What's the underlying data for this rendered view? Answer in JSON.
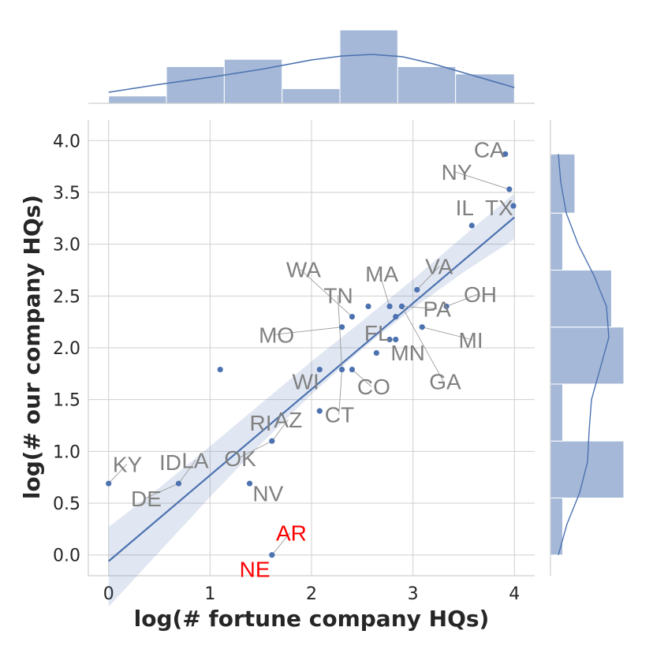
{
  "chart_data": {
    "type": "scatter",
    "xlabel": "log(# fortune company HQs)",
    "ylabel": "log(# our company HQs)",
    "xlim": [
      -0.2,
      4.2
    ],
    "ylim": [
      -0.2,
      4.2
    ],
    "x_ticks": [
      0,
      1,
      2,
      3,
      4
    ],
    "x_tick_labels": [
      "0",
      "1",
      "2",
      "3",
      "4"
    ],
    "y_ticks": [
      0.0,
      0.5,
      1.0,
      1.5,
      2.0,
      2.5,
      3.0,
      3.5,
      4.0
    ],
    "y_tick_labels": [
      "0.0",
      "0.5",
      "1.0",
      "1.5",
      "2.0",
      "2.5",
      "3.0",
      "3.5",
      "4.0"
    ],
    "grid": true,
    "marker_color": "#4c72b0",
    "label_color": "#808080",
    "highlight_color": "#ff0000",
    "points": [
      {
        "x": 0.0,
        "y": 0.69
      },
      {
        "x": 0.69,
        "y": 0.69
      },
      {
        "x": 1.1,
        "y": 1.79
      },
      {
        "x": 1.39,
        "y": 0.69
      },
      {
        "x": 1.61,
        "y": 1.1
      },
      {
        "x": 1.61,
        "y": 0.0
      },
      {
        "x": 2.08,
        "y": 1.79
      },
      {
        "x": 2.08,
        "y": 1.39
      },
      {
        "x": 2.3,
        "y": 2.2
      },
      {
        "x": 2.3,
        "y": 1.79
      },
      {
        "x": 2.4,
        "y": 2.3
      },
      {
        "x": 2.4,
        "y": 1.79
      },
      {
        "x": 2.56,
        "y": 2.4
      },
      {
        "x": 2.64,
        "y": 1.95
      },
      {
        "x": 2.77,
        "y": 2.4
      },
      {
        "x": 2.77,
        "y": 2.08
      },
      {
        "x": 2.83,
        "y": 2.3
      },
      {
        "x": 2.83,
        "y": 2.08
      },
      {
        "x": 2.89,
        "y": 2.4
      },
      {
        "x": 3.04,
        "y": 2.56
      },
      {
        "x": 3.09,
        "y": 2.2
      },
      {
        "x": 3.33,
        "y": 2.4
      },
      {
        "x": 3.58,
        "y": 3.18
      },
      {
        "x": 3.91,
        "y": 3.87
      },
      {
        "x": 3.95,
        "y": 3.53
      },
      {
        "x": 3.99,
        "y": 3.37
      }
    ],
    "annotations": [
      {
        "text": "KY",
        "x": 0.0,
        "y": 0.69,
        "tx": 0.04,
        "ty": 0.8,
        "highlight": false
      },
      {
        "text": "ID",
        "x": 0.69,
        "y": 0.69,
        "tx": 0.5,
        "ty": 0.82,
        "highlight": false
      },
      {
        "text": "LA",
        "x": 0.69,
        "y": 0.69,
        "tx": 0.72,
        "ty": 0.84,
        "highlight": false
      },
      {
        "text": "DE",
        "x": 0.69,
        "y": 0.69,
        "tx": 0.22,
        "ty": 0.47,
        "highlight": false
      },
      {
        "text": "OK",
        "x": 1.61,
        "y": 1.1,
        "tx": 1.14,
        "ty": 0.86,
        "highlight": false
      },
      {
        "text": "NV",
        "x": 1.39,
        "y": 0.69,
        "tx": 1.42,
        "ty": 0.52,
        "highlight": false
      },
      {
        "text": "RI",
        "x": 1.61,
        "y": 1.1,
        "tx": 1.39,
        "ty": 1.2,
        "highlight": false
      },
      {
        "text": "AZ",
        "x": 1.61,
        "y": 1.1,
        "tx": 1.63,
        "ty": 1.23,
        "highlight": false
      },
      {
        "text": "AR",
        "x": 1.61,
        "y": 0.0,
        "tx": 1.65,
        "ty": 0.14,
        "highlight": true
      },
      {
        "text": "NE",
        "x": 1.61,
        "y": 0.0,
        "tx": 1.29,
        "ty": -0.21,
        "highlight": true
      },
      {
        "text": "WI",
        "x": 2.08,
        "y": 1.79,
        "tx": 1.81,
        "ty": 1.6,
        "highlight": false
      },
      {
        "text": "CT",
        "x": 2.3,
        "y": 1.79,
        "tx": 2.13,
        "ty": 1.28,
        "highlight": false
      },
      {
        "text": "CO",
        "x": 2.4,
        "y": 1.79,
        "tx": 2.45,
        "ty": 1.55,
        "highlight": false
      },
      {
        "text": "MO",
        "x": 2.3,
        "y": 2.2,
        "tx": 1.48,
        "ty": 2.05,
        "highlight": false
      },
      {
        "text": "WA",
        "x": 2.4,
        "y": 2.3,
        "tx": 1.75,
        "ty": 2.68,
        "highlight": false
      },
      {
        "text": "TN",
        "x": 2.3,
        "y": 1.79,
        "tx": 2.12,
        "ty": 2.43,
        "highlight": false
      },
      {
        "text": "MA",
        "x": 2.77,
        "y": 2.4,
        "tx": 2.53,
        "ty": 2.64,
        "highlight": false
      },
      {
        "text": "VA",
        "x": 3.04,
        "y": 2.56,
        "tx": 3.12,
        "ty": 2.71,
        "highlight": false
      },
      {
        "text": "OH",
        "x": 3.33,
        "y": 2.4,
        "tx": 3.5,
        "ty": 2.44,
        "highlight": false
      },
      {
        "text": "PA",
        "x": 2.89,
        "y": 2.4,
        "tx": 3.1,
        "ty": 2.3,
        "highlight": false
      },
      {
        "text": "FL",
        "x": 2.77,
        "y": 2.08,
        "tx": 2.52,
        "ty": 2.07,
        "highlight": false
      },
      {
        "text": "MI",
        "x": 3.09,
        "y": 2.2,
        "tx": 3.45,
        "ty": 2.0,
        "highlight": false
      },
      {
        "text": "MN",
        "x": 2.83,
        "y": 2.08,
        "tx": 2.78,
        "ty": 1.88,
        "highlight": false
      },
      {
        "text": "GA",
        "x": 2.89,
        "y": 2.4,
        "tx": 3.16,
        "ty": 1.6,
        "highlight": false
      },
      {
        "text": "IL",
        "x": 3.58,
        "y": 3.18,
        "tx": 3.42,
        "ty": 3.28,
        "highlight": false
      },
      {
        "text": "TX",
        "x": 3.99,
        "y": 3.37,
        "tx": 3.71,
        "ty": 3.28,
        "highlight": false
      },
      {
        "text": "NY",
        "x": 3.95,
        "y": 3.53,
        "tx": 3.28,
        "ty": 3.62,
        "highlight": false
      },
      {
        "text": "CA",
        "x": 3.91,
        "y": 3.87,
        "tx": 3.6,
        "ty": 3.84,
        "highlight": false
      }
    ],
    "regression": {
      "intercept": -0.06,
      "slope": 0.83,
      "ci_x": [
        0,
        0.5,
        1,
        1.5,
        2,
        2.5,
        3,
        3.5,
        4
      ],
      "ci_low": [
        -0.5,
        0.03,
        0.56,
        1.07,
        1.55,
        1.99,
        2.38,
        2.73,
        3.05
      ],
      "ci_high": [
        0.27,
        0.65,
        1.05,
        1.46,
        1.87,
        2.26,
        2.66,
        3.08,
        3.49
      ]
    },
    "x_hist": {
      "edges": [
        0,
        0.57,
        1.14,
        1.71,
        2.28,
        2.85,
        3.42,
        4.0
      ],
      "counts": [
        1,
        5,
        6,
        2,
        10,
        5,
        4
      ]
    },
    "x_kde": {
      "x": [
        0,
        0.5,
        1,
        1.5,
        2,
        2.3,
        2.6,
        2.9,
        3.2,
        3.6,
        4.0
      ],
      "density": [
        1.4,
        2.4,
        3.3,
        4.3,
        5.5,
        6.0,
        6.2,
        5.9,
        5.0,
        3.5,
        2.0
      ]
    },
    "y_hist": {
      "edges": [
        0,
        0.55,
        1.1,
        1.65,
        2.2,
        2.75,
        3.3,
        3.87
      ],
      "counts": [
        1,
        6,
        1,
        6,
        5,
        1,
        2
      ]
    },
    "y_kde": {
      "y": [
        0,
        0.3,
        0.6,
        0.9,
        1.2,
        1.5,
        1.8,
        2.1,
        2.4,
        2.7,
        3.0,
        3.3,
        3.6,
        3.87
      ],
      "density": [
        0.2,
        1.3,
        2.9,
        3.9,
        4.1,
        4.4,
        5.5,
        6.6,
        6.3,
        4.7,
        2.7,
        1.2,
        0.5,
        0.2
      ]
    }
  }
}
